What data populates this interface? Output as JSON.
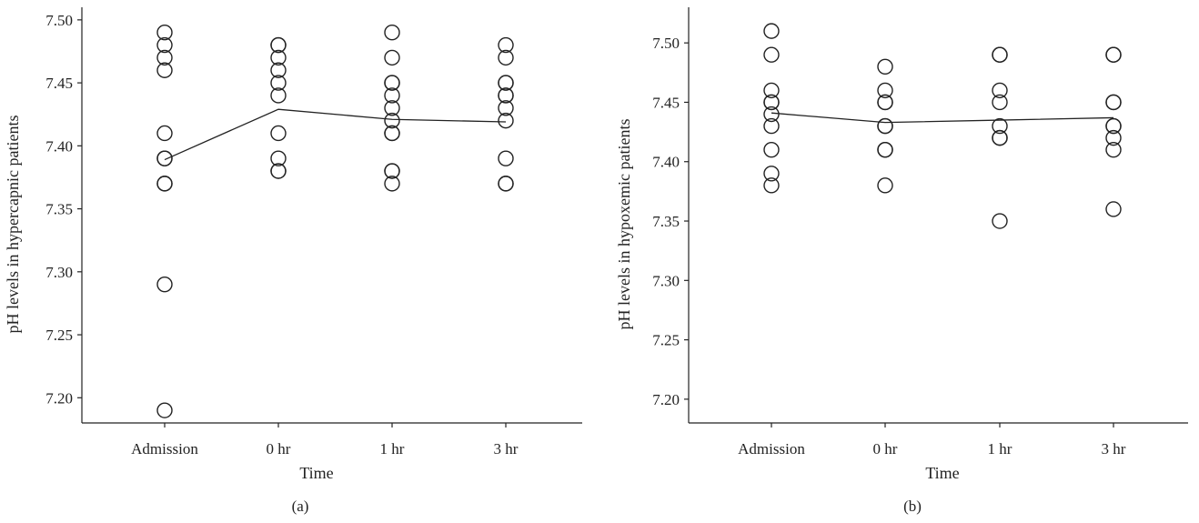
{
  "chart_data": [
    {
      "type": "scatter",
      "panel_label": "(a)",
      "xlabel": "Time",
      "ylabel": "pH levels in hypercapnic patients",
      "categories": [
        "Admission",
        "0 hr",
        "1 hr",
        "3 hr"
      ],
      "yticks": [
        "7.20",
        "7.25",
        "7.30",
        "7.35",
        "7.40",
        "7.45",
        "7.50"
      ],
      "ylim": [
        7.18,
        7.51
      ],
      "points": [
        [
          7.49,
          7.48,
          7.47,
          7.46,
          7.41,
          7.39,
          7.39,
          7.37,
          7.37,
          7.29,
          7.19
        ],
        [
          7.48,
          7.48,
          7.47,
          7.46,
          7.45,
          7.44,
          7.41,
          7.39,
          7.38,
          7.38
        ],
        [
          7.49,
          7.47,
          7.45,
          7.45,
          7.44,
          7.43,
          7.42,
          7.41,
          7.41,
          7.38,
          7.38,
          7.37
        ],
        [
          7.48,
          7.47,
          7.45,
          7.45,
          7.44,
          7.44,
          7.43,
          7.42,
          7.39,
          7.37,
          7.37
        ]
      ],
      "mean_line": [
        7.389,
        7.429,
        7.421,
        7.419
      ],
      "grid": false
    },
    {
      "type": "scatter",
      "panel_label": "(b)",
      "xlabel": "Time",
      "ylabel": "pH levels in hypoxemic patients",
      "categories": [
        "Admission",
        "0 hr",
        "1 hr",
        "3 hr"
      ],
      "yticks": [
        "7.20",
        "7.25",
        "7.30",
        "7.35",
        "7.40",
        "7.45",
        "7.50"
      ],
      "ylim": [
        7.18,
        7.53
      ],
      "points": [
        [
          7.51,
          7.49,
          7.46,
          7.45,
          7.45,
          7.44,
          7.43,
          7.41,
          7.39,
          7.38
        ],
        [
          7.48,
          7.46,
          7.45,
          7.45,
          7.43,
          7.43,
          7.41,
          7.41,
          7.38
        ],
        [
          7.49,
          7.49,
          7.46,
          7.45,
          7.43,
          7.42,
          7.42,
          7.35
        ],
        [
          7.49,
          7.49,
          7.45,
          7.45,
          7.43,
          7.43,
          7.42,
          7.41,
          7.36
        ]
      ],
      "mean_line": [
        7.441,
        7.433,
        7.435,
        7.437
      ],
      "grid": false
    }
  ]
}
